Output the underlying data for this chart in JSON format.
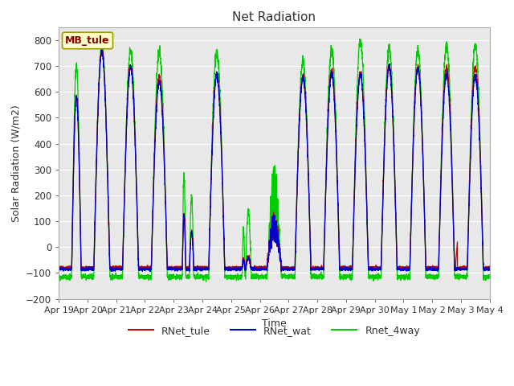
{
  "title": "Net Radiation",
  "xlabel": "Time",
  "ylabel": "Solar Radiation (W/m2)",
  "ylim": [
    -200,
    850
  ],
  "yticks": [
    -200,
    -100,
    0,
    100,
    200,
    300,
    400,
    500,
    600,
    700,
    800
  ],
  "plot_bg": "#e8e8e8",
  "fig_bg": "#ffffff",
  "legend_entries": [
    "RNet_tule",
    "RNet_wat",
    "Rnet_4way"
  ],
  "legend_colors": [
    "#cc0000",
    "#0000cc",
    "#00cc00"
  ],
  "station_label": "MB_tule",
  "station_label_fg": "#880000",
  "station_label_bg": "#ffffc8",
  "station_label_border": "#999900",
  "n_days": 15,
  "day_labels": [
    "Apr 19",
    "Apr 20",
    "Apr 21",
    "Apr 22",
    "Apr 23",
    "Apr 24",
    "Apr 25",
    "Apr 26",
    "Apr 27",
    "Apr 28",
    "Apr 29",
    "Apr 30",
    "May 1",
    "May 2",
    "May 3",
    "May 4"
  ],
  "title_color": "#333333",
  "tick_color": "#333333",
  "grid_color": "#ffffff",
  "axes_color": "#aaaaaa"
}
